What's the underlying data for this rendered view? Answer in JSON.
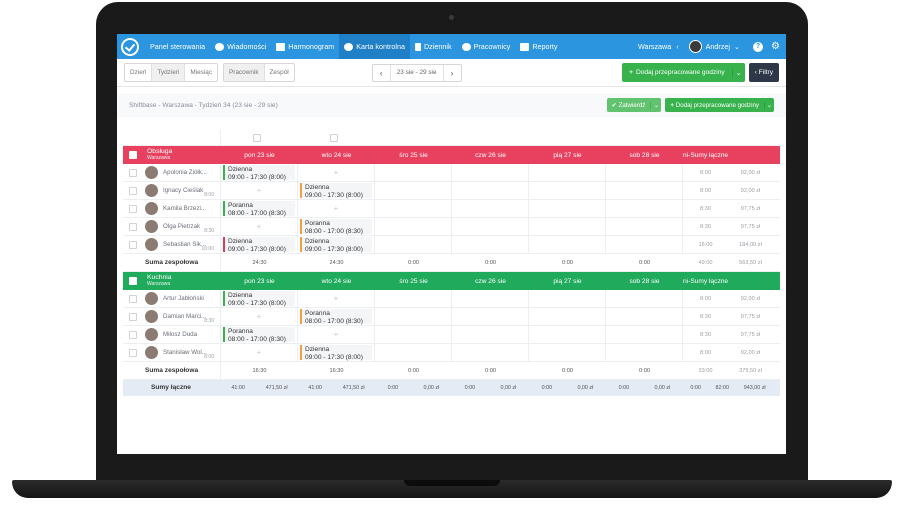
{
  "nav": {
    "items": [
      "Panel sterowania",
      "Wiadomości",
      "Harmonogram",
      "Karta kontrolna",
      "Dziennik",
      "Pracownicy",
      "Reporty"
    ],
    "active_index": 3,
    "location": "Warszawa",
    "user": "Andrzej",
    "help": "?"
  },
  "toolbar": {
    "view_buttons": [
      "Dzień",
      "Tydzień",
      "Miesiąc"
    ],
    "group_buttons": [
      "Pracownik",
      "Zespół"
    ],
    "date_range": "23 sie - 29 sie",
    "add_button": "Dodaj przepracowane godziny",
    "filters_button": "Filtry"
  },
  "subbar": {
    "title": "Shiftbase - Warszawa - Tydzień 34 (23 sie - 29 sie)",
    "approve_button": "Zatwierdź",
    "add_button": "Dodaj przepracowane godziny"
  },
  "days": [
    "pon 23 sie",
    "wto 24 sie",
    "śro 25 sie",
    "czw 26 sie",
    "pią 27 sie",
    "sob 28 sie",
    "ni-"
  ],
  "sums_label": "Sumy łączne",
  "team_sum_label": "Suma zespołowa",
  "totals_label": "Sumy łączne",
  "colors": {
    "nav": "#2b95e0",
    "team1": "#e8415f",
    "team2": "#1faa5c",
    "green": "#37b24d"
  },
  "teams": [
    {
      "name": "Obsługa",
      "location": "Warszawa",
      "employees": [
        {
          "name": "Apolonia Ziółk...",
          "hours_tag": "",
          "hours": "8:00",
          "pay": "92,00 zł",
          "shifts": [
            {
              "day": 0,
              "type": "Dzienna",
              "time": "09:00 - 17:30 (8:00)",
              "color": "green"
            },
            {
              "day": 1,
              "plus": true
            }
          ]
        },
        {
          "name": "Ignacy Cieślak",
          "hours_tag": "8:00",
          "hours": "8:00",
          "pay": "92,00 zł",
          "shifts": [
            {
              "day": 0,
              "plus": true
            },
            {
              "day": 1,
              "type": "Dzienna",
              "time": "09:00 - 17:30 (8:00)",
              "color": "orange"
            }
          ]
        },
        {
          "name": "Kamila Brzezi...",
          "hours_tag": "",
          "hours": "8:30",
          "pay": "97,75 zł",
          "shifts": [
            {
              "day": 0,
              "type": "Poranna",
              "time": "08:00 - 17:00 (8:30)",
              "color": "green"
            },
            {
              "day": 1,
              "plus": true
            }
          ]
        },
        {
          "name": "Olga Pietrzak",
          "hours_tag": "8:30",
          "hours": "8:30",
          "pay": "97,75 zł",
          "shifts": [
            {
              "day": 0,
              "plus": true
            },
            {
              "day": 1,
              "type": "Poranna",
              "time": "08:00 - 17:00 (8:30)",
              "color": "orange"
            }
          ]
        },
        {
          "name": "Sebastian Sik...",
          "hours_tag": "16:00",
          "hours": "16:00",
          "pay": "184,00 zł",
          "shifts": [
            {
              "day": 0,
              "type": "Dzienna",
              "time": "09:00 - 17:30 (8:00)",
              "color": "red"
            },
            {
              "day": 1,
              "type": "Dzienna",
              "time": "09:00 - 17:30 (8:00)",
              "color": "orange"
            }
          ]
        }
      ],
      "day_totals": [
        "24:30",
        "24:30",
        "0:00",
        "0:00",
        "0:00",
        "0:00"
      ],
      "sum_hours": "49:00",
      "sum_pay": "563,50 zł"
    },
    {
      "name": "Kuchnia",
      "location": "Warszawa",
      "employees": [
        {
          "name": "Artur Jabłoński",
          "hours_tag": "",
          "hours": "8:00",
          "pay": "92,00 zł",
          "shifts": [
            {
              "day": 0,
              "type": "Dzienna",
              "time": "09:00 - 17:30 (8:00)",
              "color": "green"
            },
            {
              "day": 1,
              "plus": true
            }
          ]
        },
        {
          "name": "Damian Marci...",
          "hours_tag": "8:30",
          "hours": "8:30",
          "pay": "97,75 zł",
          "shifts": [
            {
              "day": 0,
              "plus": true
            },
            {
              "day": 1,
              "type": "Poranna",
              "time": "08:00 - 17:00 (8:30)",
              "color": "orange"
            }
          ]
        },
        {
          "name": "Miłosz Duda",
          "hours_tag": "",
          "hours": "8:30",
          "pay": "97,75 zł",
          "shifts": [
            {
              "day": 0,
              "type": "Poranna",
              "time": "08:00 - 17:00 (8:30)",
              "color": "green"
            },
            {
              "day": 1,
              "plus": true
            }
          ]
        },
        {
          "name": "Stanisław Wol...",
          "hours_tag": "8:00",
          "hours": "8:00",
          "pay": "92,00 zł",
          "shifts": [
            {
              "day": 0,
              "plus": true
            },
            {
              "day": 1,
              "type": "Dzienna",
              "time": "09:00 - 17:30 (8:00)",
              "color": "orange"
            }
          ]
        }
      ],
      "day_totals": [
        "16:30",
        "16:30",
        "0:00",
        "0:00",
        "0:00",
        "0:00"
      ],
      "sum_hours": "33:00",
      "sum_pay": "379,50 zł"
    }
  ],
  "totals": {
    "days": [
      [
        "41:00",
        "471,50 zł"
      ],
      [
        "41:00",
        "471,50 zł"
      ],
      [
        "0:00",
        "0,00 zł"
      ],
      [
        "0:00",
        "0,00 zł"
      ],
      [
        "0:00",
        "0,00 zł"
      ],
      [
        "0:00",
        "0,00 zł"
      ]
    ],
    "sun_hours": "0:00",
    "sum_hours": "82:00",
    "sum_pay": "943,00 zł"
  }
}
